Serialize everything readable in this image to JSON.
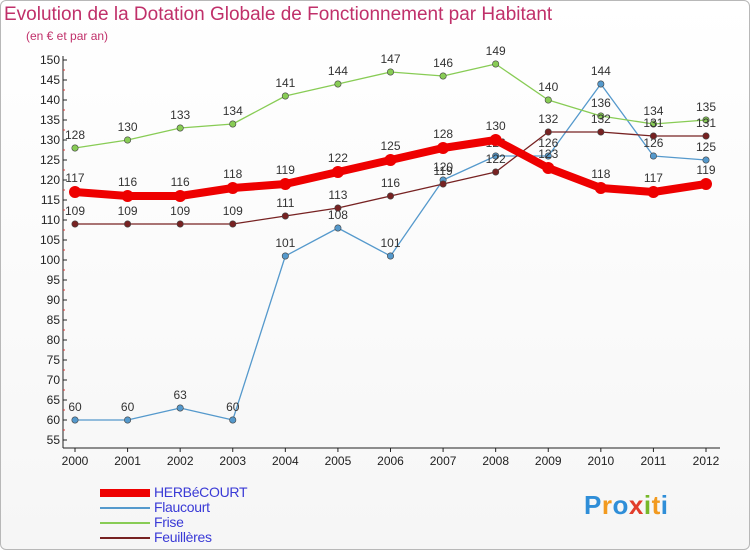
{
  "chart_data": {
    "type": "line",
    "title": "Evolution de la Dotation Globale de Fonctionnement par Habitant",
    "subtitle": "(en € et par an)",
    "xlabel": "",
    "ylabel": "",
    "x": [
      "2000",
      "2001",
      "2002",
      "2003",
      "2004",
      "2005",
      "2006",
      "2007",
      "2008",
      "2009",
      "2010",
      "2011",
      "2012"
    ],
    "ylim": [
      55,
      150
    ],
    "yticks": [
      55,
      60,
      65,
      70,
      75,
      80,
      85,
      90,
      95,
      100,
      105,
      110,
      115,
      120,
      125,
      130,
      135,
      140,
      145,
      150
    ],
    "grid": false,
    "legend_position": "bottom-left",
    "series": [
      {
        "name": "HERBéCOURT",
        "color": "#ee0000",
        "values": [
          117,
          116,
          116,
          118,
          119,
          122,
          125,
          128,
          130,
          123,
          118,
          117,
          119
        ]
      },
      {
        "name": "Flaucourt",
        "color": "#5599cc",
        "values": [
          60,
          60,
          63,
          60,
          101,
          108,
          101,
          120,
          126,
          126,
          144,
          126,
          125
        ]
      },
      {
        "name": "Frise",
        "color": "#88cc55",
        "values": [
          128,
          130,
          133,
          134,
          141,
          144,
          147,
          146,
          149,
          140,
          136,
          134,
          135
        ]
      },
      {
        "name": "Feuillères",
        "color": "#772222",
        "values": [
          109,
          109,
          109,
          109,
          111,
          113,
          116,
          119,
          122,
          132,
          132,
          131,
          131
        ]
      }
    ]
  },
  "logo": {
    "letters": [
      {
        "char": "P",
        "color": "#2f8ed8"
      },
      {
        "char": "r",
        "color": "#f29a1f"
      },
      {
        "char": "o",
        "color": "#2f8ed8"
      },
      {
        "char": "x",
        "color": "#e23d2b"
      },
      {
        "char": "i",
        "color": "#76b82a"
      },
      {
        "char": "t",
        "color": "#f29a1f"
      },
      {
        "char": "i",
        "color": "#2f8ed8"
      }
    ]
  }
}
